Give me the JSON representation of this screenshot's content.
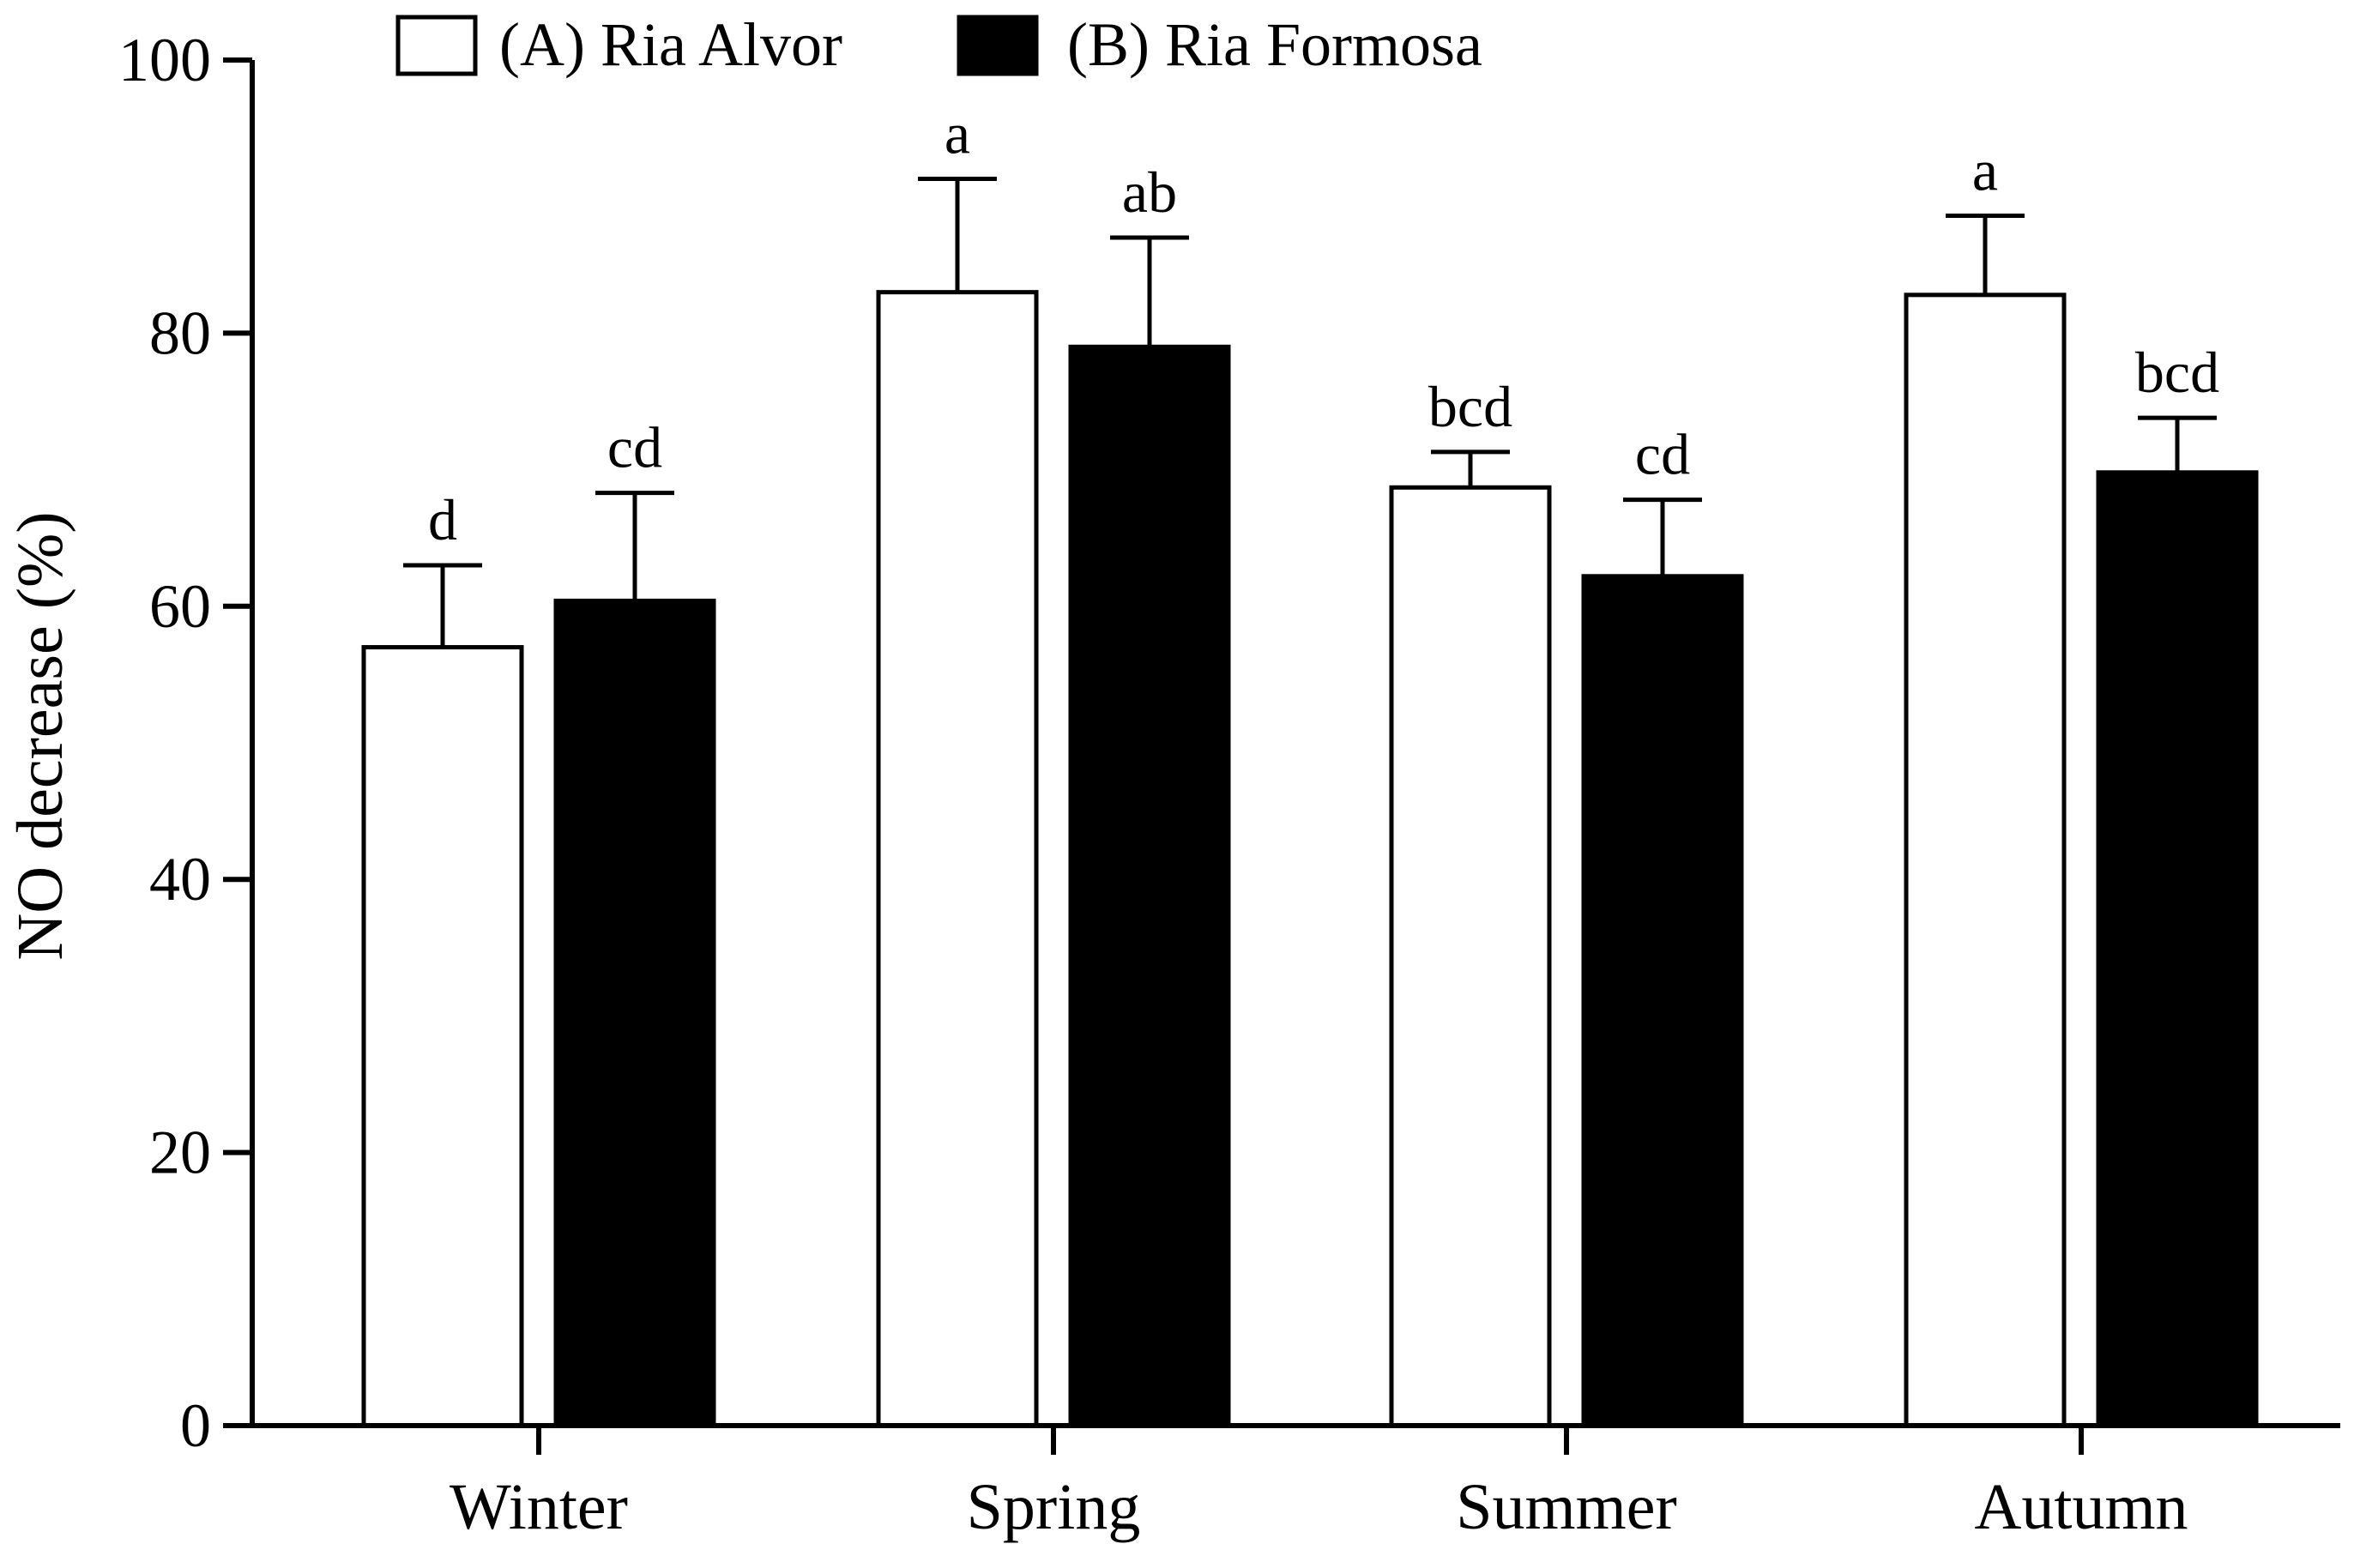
{
  "chart_data": {
    "type": "bar",
    "title": "",
    "xlabel": "",
    "ylabel": "NO decrease (%)",
    "ylim": [
      0,
      100
    ],
    "yticks": [
      0,
      20,
      40,
      60,
      80,
      100
    ],
    "grid": false,
    "legend_position": "top",
    "categories": [
      "Winter",
      "Spring",
      "Summer",
      "Autumn"
    ],
    "series": [
      {
        "name": "(A) Ria Alvor",
        "fill": "#ffffff",
        "stroke": "#000000",
        "values": [
          57,
          83,
          68.7,
          82.8
        ],
        "error": [
          6,
          8.3,
          2.6,
          5.8
        ],
        "labels": [
          "d",
          "a",
          "bcd",
          "a"
        ]
      },
      {
        "name": "(B) Ria Formosa",
        "fill": "#000000",
        "stroke": "#000000",
        "values": [
          60.4,
          79,
          62.2,
          69.8
        ],
        "error": [
          7.9,
          8,
          5.6,
          4
        ],
        "labels": [
          "cd",
          "ab",
          "cd",
          "bcd"
        ]
      }
    ]
  }
}
